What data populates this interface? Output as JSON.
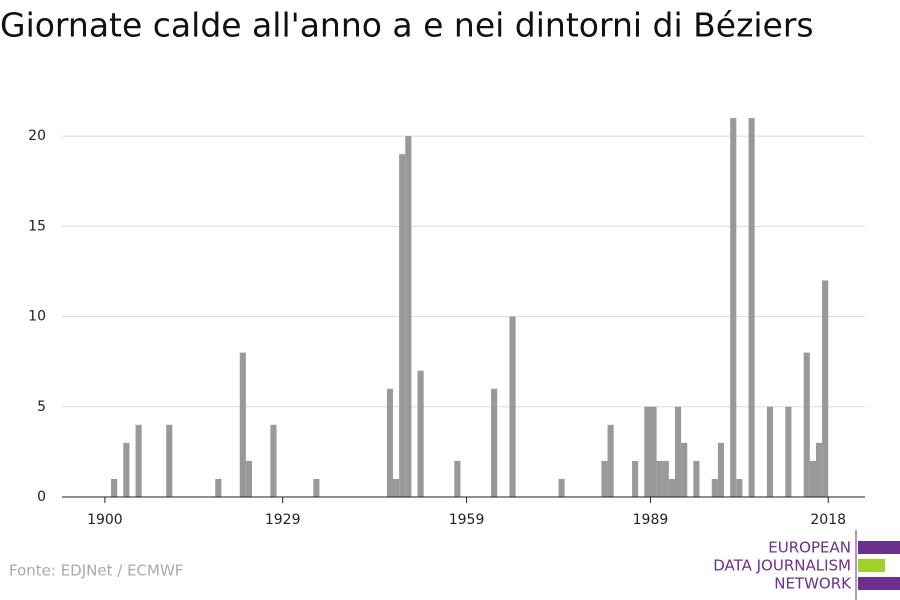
{
  "chart_data": {
    "type": "bar",
    "title": "Giornate calde all'anno a e nei dintorni di Béziers",
    "x": [
      1901,
      1903,
      1905,
      1910,
      1918,
      1922,
      1923,
      1927,
      1934,
      1946,
      1947,
      1948,
      1949,
      1951,
      1957,
      1963,
      1966,
      1974,
      1981,
      1982,
      1986,
      1988,
      1989,
      1990,
      1991,
      1992,
      1993,
      1994,
      1996,
      1999,
      2000,
      2002,
      2003,
      2005,
      2008,
      2011,
      2014,
      2015,
      2016,
      2017
    ],
    "values": [
      1,
      3,
      4,
      4,
      1,
      8,
      2,
      4,
      1,
      6,
      1,
      19,
      20,
      7,
      2,
      6,
      10,
      1,
      2,
      4,
      2,
      5,
      5,
      2,
      2,
      1,
      5,
      3,
      2,
      1,
      3,
      21,
      1,
      21,
      5,
      5,
      8,
      2,
      3,
      12
    ],
    "color": "#999999",
    "xlim": [
      1893,
      2024
    ],
    "xticks": [
      1900,
      1929,
      1959,
      1989,
      2018
    ],
    "ylim": [
      0,
      22
    ],
    "yticks": [
      0,
      5,
      10,
      15,
      20
    ],
    "grid": true
  },
  "source": "Fonte: EDJNet / ECMWF",
  "logo": [
    "EUROPEAN",
    "DATA JOURNALISM",
    "NETWORK"
  ]
}
